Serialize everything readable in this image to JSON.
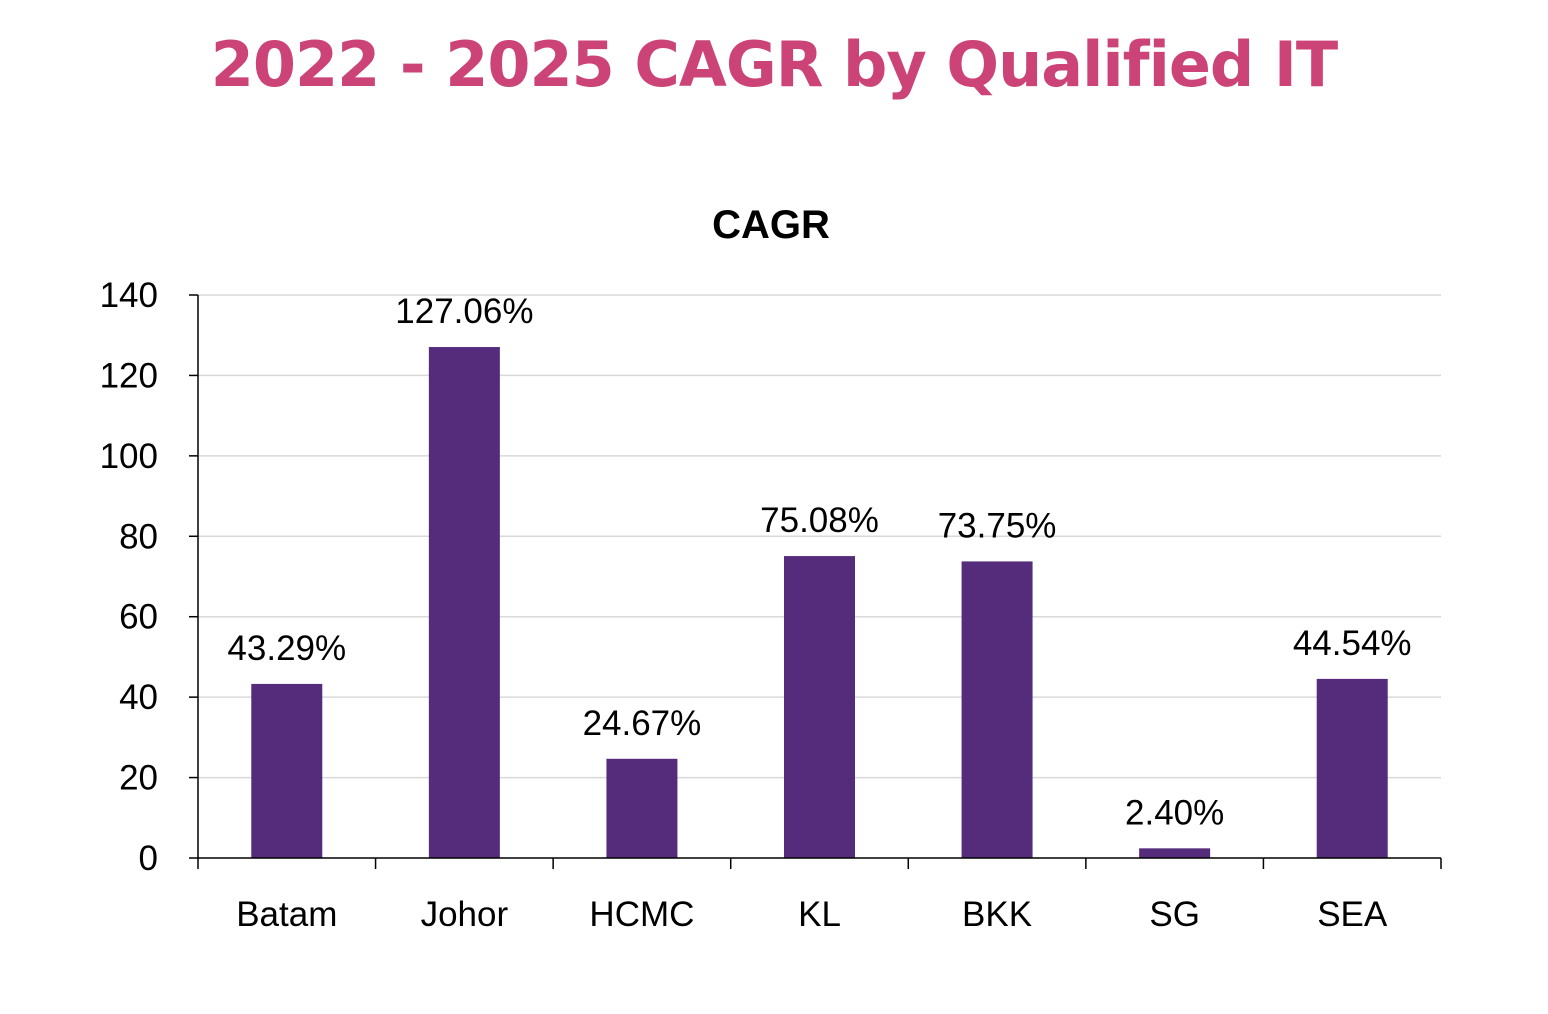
{
  "page": {
    "title": "2022 - 2025 CAGR by Qualified IT"
  },
  "colors": {
    "title": "#cc4477",
    "bar": "#542c7b",
    "grid": "#d9d9d9",
    "axis": "#000000"
  },
  "chart_data": {
    "type": "bar",
    "title": "CAGR",
    "xlabel": "",
    "ylabel": "",
    "categories": [
      "Batam",
      "Johor",
      "HCMC",
      "KL",
      "BKK",
      "SG",
      "SEA"
    ],
    "values": [
      43.29,
      127.06,
      24.67,
      75.08,
      73.75,
      2.4,
      44.54
    ],
    "data_labels": [
      "43.29%",
      "127.06%",
      "24.67%",
      "75.08%",
      "73.75%",
      "2.40%",
      "44.54%"
    ],
    "ylim": [
      0,
      140
    ],
    "yticks": [
      0,
      20,
      40,
      60,
      80,
      100,
      120,
      140
    ],
    "grid": true,
    "legend": "none"
  }
}
